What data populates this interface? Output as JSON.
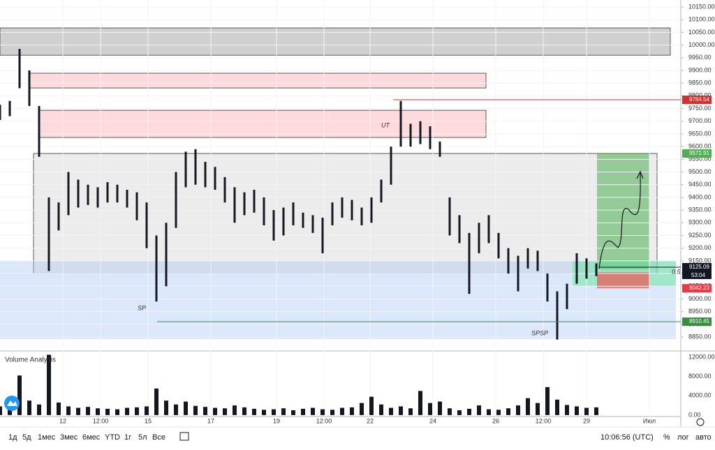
{
  "toolbar": {
    "ranges": [
      "1д",
      "5д",
      "1мес",
      "3мес",
      "6мес",
      "YTD",
      "1г",
      "5л",
      "Все"
    ],
    "clock": "10:06:56 (UTC)",
    "options": [
      "%",
      "лог",
      "авто"
    ]
  },
  "chart_data": [
    {
      "type": "ohlc",
      "color": "#131722",
      "x": [
        0,
        3.5,
        7,
        10.5,
        14,
        17.5,
        21,
        24.5,
        28,
        31.5,
        35,
        38.5,
        42,
        45.5,
        49,
        52.5,
        56,
        59.5,
        63,
        66.5,
        70,
        73.5,
        77,
        80.5,
        84,
        87.5,
        91,
        94.5,
        98,
        101.5,
        105,
        108.5,
        112,
        115.5,
        119,
        122.5,
        126,
        129.5,
        133,
        136.5,
        140,
        143.5,
        147,
        150.5,
        154,
        157.5,
        161,
        164.5,
        168,
        171.5,
        175,
        178.5,
        182,
        185.5,
        189,
        192.5,
        196,
        199.5,
        203,
        206.5,
        210,
        213.5
      ],
      "high": [
        9765,
        9780,
        9985,
        9900,
        9760,
        9400,
        9380,
        9500,
        9470,
        9450,
        9440,
        9460,
        9450,
        9430,
        9420,
        9380,
        9250,
        9300,
        9500,
        9580,
        9590,
        9540,
        9520,
        9480,
        9440,
        9420,
        9430,
        9400,
        9350,
        9360,
        9380,
        9340,
        9330,
        9320,
        9380,
        9400,
        9390,
        9360,
        9400,
        9470,
        9600,
        9780,
        9690,
        9700,
        9680,
        9620,
        9400,
        9330,
        9260,
        9300,
        9330,
        9260,
        9200,
        9170,
        9200,
        9190,
        9100,
        9030,
        9060,
        9180,
        9160,
        9140
      ],
      "low": [
        9705,
        9720,
        9830,
        9760,
        9560,
        9110,
        9270,
        9330,
        9360,
        9370,
        9360,
        9380,
        9380,
        9360,
        9310,
        9200,
        8990,
        9050,
        9280,
        9440,
        9450,
        9440,
        9430,
        9380,
        9300,
        9330,
        9340,
        9290,
        9230,
        9250,
        9290,
        9280,
        9260,
        9180,
        9290,
        9320,
        9310,
        9290,
        9300,
        9380,
        9450,
        9600,
        9600,
        9610,
        9590,
        9560,
        9250,
        9220,
        9020,
        9180,
        9220,
        9160,
        9100,
        9030,
        9120,
        9110,
        8990,
        8840,
        8960,
        9060,
        9080,
        9090
      ],
      "xlim": [
        0,
        243.75
      ],
      "ylim": [
        8798,
        10177.5
      ],
      "yticks": [
        {
          "value": 10150,
          "label": "10150.00"
        },
        {
          "value": 10100,
          "label": "10100.00"
        },
        {
          "value": 10050,
          "label": "10050.00"
        },
        {
          "value": 10000,
          "label": "10000.00"
        },
        {
          "value": 9950,
          "label": "9950.00"
        },
        {
          "value": 9900,
          "label": "9900.00"
        },
        {
          "value": 9850,
          "label": "9850.00"
        },
        {
          "value": 9800,
          "label": "9800.00"
        },
        {
          "value": 9750,
          "label": "9750.00"
        },
        {
          "value": 9700,
          "label": "9700.00"
        },
        {
          "value": 9650,
          "label": "9650.00"
        },
        {
          "value": 9600,
          "label": "9600.00"
        },
        {
          "value": 9550,
          "label": "9550.00"
        },
        {
          "value": 9500,
          "label": "9500.00"
        },
        {
          "value": 9450,
          "label": "9450.00"
        },
        {
          "value": 9400,
          "label": "9400.00"
        },
        {
          "value": 9350,
          "label": "9350.00"
        },
        {
          "value": 9300,
          "label": "9300.00"
        },
        {
          "value": 9250,
          "label": "9250.00"
        },
        {
          "value": 9200,
          "label": "9200.00"
        },
        {
          "value": 9150,
          "label": "9150.00"
        },
        {
          "value": 9100,
          "label": "9100.00"
        },
        {
          "value": 9050,
          "label": "9050.00"
        },
        {
          "value": 9000,
          "label": "9000.00"
        },
        {
          "value": 8950,
          "label": "8950.00"
        },
        {
          "value": 8900,
          "label": "8900.00"
        },
        {
          "value": 8850,
          "label": "8850.00"
        }
      ],
      "xticks": [
        {
          "value": 22.5,
          "label": "12"
        },
        {
          "value": 36,
          "label": "12:00"
        },
        {
          "value": 53,
          "label": "15"
        },
        {
          "value": 75.5,
          "label": "17"
        },
        {
          "value": 99,
          "label": "19"
        },
        {
          "value": 116,
          "label": "12:00"
        },
        {
          "value": 132.5,
          "label": "22"
        },
        {
          "value": 155,
          "label": "24"
        },
        {
          "value": 177.5,
          "label": "26"
        },
        {
          "value": 194.5,
          "label": "12:00"
        },
        {
          "value": 210,
          "label": "29"
        },
        {
          "value": 232.5,
          "label": "Июл"
        }
      ],
      "grid": true,
      "zones": [
        {
          "x": [
            12,
            235.25
          ],
          "y": [
            9100,
            9573
          ],
          "color": "rgba(200,200,200,0.35)"
        },
        {
          "x": [
            0,
            242
          ],
          "y": [
            8842,
            9150
          ],
          "color": "rgba(170,200,245,0.42)"
        },
        {
          "x": [
            0,
            240
          ],
          "y": [
            9960,
            10067.5
          ],
          "color": "rgba(150,150,150,0.45)"
        },
        {
          "x": [
            10.75,
            174
          ],
          "y": [
            9831,
            9889
          ],
          "color": "rgba(255,205,210,0.75)"
        },
        {
          "x": [
            14.25,
            174
          ],
          "y": [
            9636,
            9743
          ],
          "color": "rgba(255,205,210,0.75)"
        },
        {
          "x": [
            213.75,
            232.5
          ],
          "y": [
            9117,
            9573
          ],
          "color": "rgba(76,175,80,0.55)"
        },
        {
          "x": [
            205,
            242
          ],
          "y": [
            9051,
            9150
          ],
          "color": "rgba(100,230,150,0.5)"
        },
        {
          "x": [
            213.75,
            232.5
          ],
          "y": [
            9042,
            9105
          ],
          "color": "rgba(239,83,80,0.7)"
        }
      ],
      "levels": [
        {
          "value": 9784.54,
          "color": "#d32f2f",
          "from": 140.75
        },
        {
          "value": 9572.91,
          "color": "#4caf50"
        },
        {
          "value": 9125.09,
          "color": "#131722",
          "from": 214.5
        },
        {
          "value": 9042.23,
          "color": "#f23645"
        },
        {
          "value": 8910.45,
          "color": "#388e3c",
          "from": 56.25
        }
      ],
      "countdown": "53:04",
      "annotations": [
        "UT",
        "SP",
        "SPSP",
        "0.5"
      ]
    },
    {
      "type": "bar",
      "title": "Volume Analysis",
      "color": "#131722",
      "values": [
        1800,
        2500,
        8200,
        3000,
        2200,
        12500,
        2600,
        1800,
        1500,
        1700,
        1400,
        1300,
        1200,
        1500,
        1600,
        1800,
        5500,
        3000,
        2200,
        2800,
        1900,
        1700,
        1500,
        1400,
        2000,
        1600,
        1300,
        1100,
        1200,
        1400,
        1000,
        1300,
        1500,
        1200,
        1100,
        1500,
        1600,
        2500,
        3800,
        2200,
        1500,
        1800,
        1400,
        5000,
        2500,
        2800,
        1400,
        1000,
        1300,
        2000,
        1200,
        1100,
        1400,
        2000,
        3500,
        2500,
        5800,
        3200,
        2100,
        1800,
        1500,
        1600
      ],
      "ylim": [
        -300,
        13000
      ],
      "yticks": [
        {
          "value": 12000,
          "label": "12000.00"
        },
        {
          "value": 8000,
          "label": "8000.00"
        },
        {
          "value": 4000,
          "label": "4000.00"
        },
        {
          "value": 0,
          "label": "0.00"
        }
      ]
    }
  ]
}
